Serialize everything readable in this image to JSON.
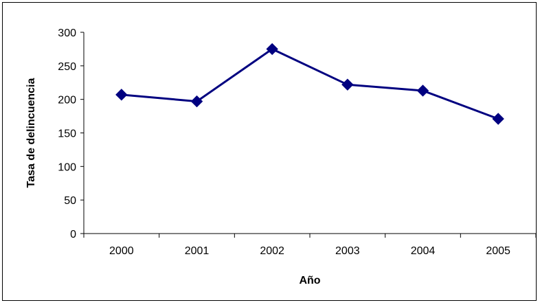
{
  "chart_data": {
    "type": "line",
    "title": "",
    "xlabel": "Año",
    "ylabel": "Tasa de delincuencia",
    "categories": [
      "2000",
      "2001",
      "2002",
      "2003",
      "2004",
      "2005"
    ],
    "series": [
      {
        "values": [
          207,
          197,
          275,
          222,
          213,
          171
        ]
      }
    ],
    "ylim": [
      0,
      300
    ],
    "yticks": [
      "0",
      "50",
      "100",
      "150",
      "200",
      "250",
      "300"
    ],
    "grid": false,
    "legend": "none",
    "line_color": "#000080",
    "marker": "diamond"
  }
}
